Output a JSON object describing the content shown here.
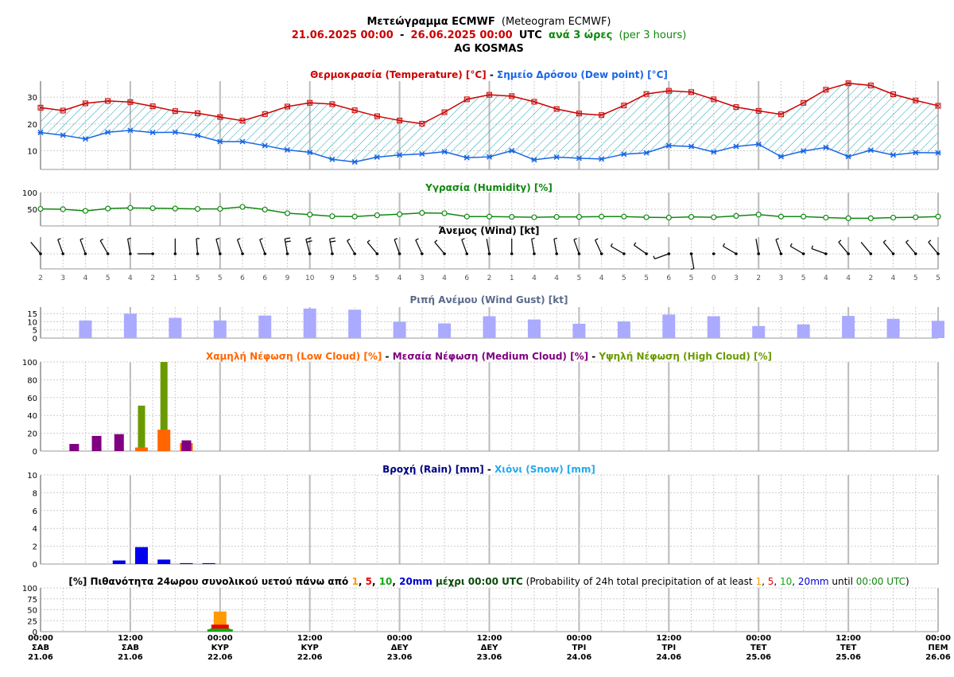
{
  "header": {
    "title_greek": "Μετεώγραμμα ECMWF",
    "title_english": "(Meteogram ECMWF)",
    "range_start": "21.06.2025 00:00",
    "range_sep": "-",
    "range_end": "26.06.2025 00:00",
    "range_utc": "UTC",
    "step_greek": "ανά 3 ώρες",
    "step_english": "(per 3 hours)",
    "location": "AG KOSMAS"
  },
  "colors": {
    "temperature": "#cc0000",
    "dewpoint": "#1a66e6",
    "humidity": "#118811",
    "gust": "#aaaaff",
    "low_cloud": "#ff6600",
    "medium_cloud": "#800080",
    "high_cloud": "#6b9a00",
    "rain": "#0000ee",
    "snow": "#22aaee",
    "prob_1": "#ff9900",
    "prob_5": "#ee0000",
    "prob_10": "#11aa11",
    "prob_20": "#0000cc",
    "hatch": "#1aa3b8"
  },
  "chart_data": [
    {
      "id": "temperature",
      "type": "line",
      "title_parts": [
        {
          "text": "Θερμοκρασία (Temperature) [°C]",
          "color": "#cc0000"
        },
        {
          "text": " - ",
          "color": "#000000"
        },
        {
          "text": "Σημείο Δρόσου (Dew point) [°C]",
          "color": "#1a66e6"
        }
      ],
      "ylim": [
        3,
        36
      ],
      "yticks": [
        10,
        20,
        30
      ],
      "series": [
        {
          "name": "Θερμοκρασία (Temperature) [°C]",
          "values": [
            26.1,
            25.0,
            27.7,
            28.6,
            28.2,
            26.6,
            24.8,
            24.0,
            22.6,
            21.2,
            23.7,
            26.5,
            27.9,
            27.4,
            25.1,
            22.9,
            21.3,
            20.1,
            24.4,
            29.2,
            30.9,
            30.4,
            28.3,
            25.6,
            23.9,
            23.3,
            26.9,
            31.2,
            32.4,
            31.9,
            29.2,
            26.3,
            24.9,
            23.6,
            27.9,
            32.8,
            35.2,
            34.4,
            31.1,
            28.8,
            26.8
          ]
        },
        {
          "name": "Σημείο Δρόσου (Dew point) [°C]",
          "values": [
            16.8,
            15.8,
            14.4,
            16.9,
            17.6,
            16.8,
            16.9,
            15.7,
            13.4,
            13.4,
            11.9,
            10.3,
            9.4,
            6.8,
            5.8,
            7.6,
            8.4,
            8.8,
            9.6,
            7.4,
            7.7,
            10.0,
            6.6,
            7.6,
            7.2,
            6.9,
            8.7,
            9.2,
            11.9,
            11.6,
            9.5,
            11.6,
            12.4,
            7.8,
            9.9,
            11.2,
            7.8,
            10.2,
            8.4,
            9.3,
            9.2
          ]
        }
      ]
    },
    {
      "id": "humidity",
      "type": "line",
      "title_parts": [
        {
          "text": "Υγρασία (Humidity) [%]",
          "color": "#118811"
        }
      ],
      "ylim": [
        0,
        100
      ],
      "yticks": [
        50,
        100
      ],
      "series": [
        {
          "name": "Υγρασία (Humidity) [%]",
          "values": [
            51,
            50,
            45,
            52,
            54,
            53,
            52,
            51,
            51,
            57,
            49,
            38,
            34,
            29,
            28,
            32,
            35,
            39,
            38,
            28,
            28,
            27,
            26,
            27,
            27,
            28,
            28,
            26,
            25,
            27,
            26,
            30,
            34,
            28,
            28,
            25,
            23,
            23,
            25,
            26,
            28
          ]
        }
      ]
    },
    {
      "id": "wind",
      "type": "scatter",
      "title_parts": [
        {
          "text": "Άνεμος (Wind) [kt]",
          "color": "#000000"
        }
      ],
      "speed_labels": [
        "2",
        "3",
        "4",
        "5",
        "4",
        "2",
        "1",
        "5",
        "5",
        "6",
        "6",
        "9",
        "10",
        "9",
        "5",
        "5",
        "4",
        "3",
        "4",
        "6",
        "2",
        "1",
        "4",
        "4",
        "5",
        "4",
        "5",
        "5",
        "6",
        "5",
        "0",
        "3",
        "2",
        "3",
        "5",
        "4",
        "4",
        "2",
        "4",
        "5",
        "5"
      ],
      "series": [
        {
          "name": "speed",
          "values": [
            2,
            3,
            4,
            5,
            4,
            2,
            1,
            5,
            5,
            6,
            6,
            9,
            10,
            9,
            5,
            5,
            4,
            3,
            4,
            6,
            2,
            1,
            4,
            4,
            5,
            4,
            5,
            5,
            6,
            5,
            0,
            3,
            2,
            3,
            5,
            4,
            4,
            2,
            4,
            5,
            5
          ]
        },
        {
          "name": "direction",
          "values": [
            320,
            340,
            340,
            330,
            350,
            270,
            360,
            355,
            345,
            340,
            340,
            350,
            345,
            350,
            330,
            320,
            340,
            335,
            320,
            340,
            350,
            0,
            350,
            350,
            340,
            335,
            300,
            305,
            250,
            170,
            280,
            300,
            350,
            340,
            300,
            290,
            320,
            320,
            320,
            320,
            320
          ]
        }
      ]
    },
    {
      "id": "gust",
      "type": "bar",
      "title_parts": [
        {
          "text": "Ριπή Ανέμου (Wind Gust) [kt]",
          "color": "#5a6a8a"
        }
      ],
      "ylim": [
        0,
        19
      ],
      "yticks": [
        0,
        5,
        10,
        15
      ],
      "series": [
        {
          "name": "Ριπή Ανέμου (Wind Gust) [kt]",
          "values": [
            null,
            10.8,
            15.0,
            12.4,
            10.8,
            13.8,
            18.1,
            17.4,
            10.0,
            9.0,
            13.4,
            11.4,
            8.8,
            10.2,
            14.4,
            13.4,
            7.4,
            8.4,
            13.6,
            11.8,
            10.6
          ]
        }
      ]
    },
    {
      "id": "cloud",
      "type": "bar",
      "title_parts": [
        {
          "text": "Χαμηλή Νέφωση (Low Cloud) [%]",
          "color": "#ff6600"
        },
        {
          "text": " - ",
          "color": "#000000"
        },
        {
          "text": "Μεσαία Νέφωση (Medium Cloud) [%]",
          "color": "#800080"
        },
        {
          "text": " - ",
          "color": "#000000"
        },
        {
          "text": "Υψηλή Νέφωση (High Cloud) [%]",
          "color": "#6b9a00"
        }
      ],
      "ylim": [
        0,
        100
      ],
      "yticks": [
        0,
        20,
        40,
        60,
        80,
        100
      ],
      "series": [
        {
          "name": "Χαμηλή Νέφωση (Low Cloud) [%]",
          "values": [
            0,
            0,
            0,
            0,
            4,
            24,
            9,
            0,
            0,
            0,
            0,
            0,
            0,
            0,
            0,
            0,
            0,
            0,
            0,
            0,
            0,
            0,
            0,
            0,
            0,
            0,
            0,
            0,
            0,
            0,
            0,
            0,
            0,
            0,
            0,
            0,
            0,
            0,
            0,
            0
          ]
        },
        {
          "name": "Μεσαία Νέφωση (Medium Cloud) [%]",
          "values": [
            0,
            8,
            17,
            19,
            2,
            0,
            12,
            0,
            0,
            0,
            0,
            0,
            0,
            0,
            0,
            0,
            0,
            0,
            0,
            0,
            0,
            0,
            0,
            0,
            0,
            0,
            0,
            0,
            0,
            0,
            0,
            0,
            0,
            0,
            0,
            0,
            0,
            0,
            0,
            0
          ]
        },
        {
          "name": "Υψηλή Νέφωση (High Cloud) [%]",
          "values": [
            0,
            0,
            0,
            0,
            51,
            100,
            0,
            0,
            0,
            0,
            0,
            0,
            0,
            0,
            0,
            0,
            0,
            0,
            0,
            0,
            0,
            0,
            0,
            0,
            0,
            0,
            0,
            0,
            0,
            0,
            0,
            0,
            0,
            0,
            0,
            0,
            0,
            0,
            0,
            0
          ]
        }
      ]
    },
    {
      "id": "rain",
      "type": "bar",
      "title_parts": [
        {
          "text": "Βροχή (Rain) [mm]",
          "color": "#000080"
        },
        {
          "text": " - ",
          "color": "#000000"
        },
        {
          "text": "Χιόνι (Snow) [mm]",
          "color": "#22aaee"
        }
      ],
      "ylim": [
        0,
        10
      ],
      "yticks": [
        0,
        2,
        4,
        6,
        8,
        10
      ],
      "series": [
        {
          "name": "Βροχή (Rain) [mm]",
          "values": [
            0,
            0,
            0,
            0.4,
            1.9,
            0.5,
            0.1,
            0.1,
            0,
            0,
            0,
            0,
            0,
            0,
            0,
            0,
            0,
            0,
            0,
            0,
            0,
            0,
            0,
            0,
            0,
            0,
            0,
            0,
            0,
            0,
            0,
            0,
            0,
            0,
            0,
            0,
            0,
            0,
            0,
            0
          ]
        },
        {
          "name": "Χιόνι (Snow) [mm]",
          "values": [
            0,
            0,
            0,
            0,
            0,
            0,
            0,
            0,
            0,
            0,
            0,
            0,
            0,
            0,
            0,
            0,
            0,
            0,
            0,
            0,
            0,
            0,
            0,
            0,
            0,
            0,
            0,
            0,
            0,
            0,
            0,
            0,
            0,
            0,
            0,
            0,
            0,
            0,
            0,
            0
          ]
        }
      ]
    },
    {
      "id": "probability",
      "type": "bar",
      "title_parts": [
        {
          "text": "[%] Πιθανότητα 24ωρου συνολικού υετού πάνω από ",
          "color": "#000000",
          "bold": true
        },
        {
          "text": "1",
          "color": "#ff9900",
          "bold": true
        },
        {
          "text": ", ",
          "color": "#000000",
          "bold": true
        },
        {
          "text": "5",
          "color": "#ee0000",
          "bold": true
        },
        {
          "text": ", ",
          "color": "#000000",
          "bold": true
        },
        {
          "text": "10",
          "color": "#11aa11",
          "bold": true
        },
        {
          "text": ", ",
          "color": "#000000",
          "bold": true
        },
        {
          "text": "20mm",
          "color": "#0000cc",
          "bold": true
        },
        {
          "text": " μέχρι 00:00 UTC",
          "color": "#0a4a0a",
          "bold": true
        },
        {
          "text": " (Probability of 24h total precipitation of at least ",
          "color": "#000000",
          "bold": false
        },
        {
          "text": "1",
          "color": "#ff9900",
          "bold": false
        },
        {
          "text": ", ",
          "color": "#000000",
          "bold": false
        },
        {
          "text": "5",
          "color": "#ee0000",
          "bold": false
        },
        {
          "text": ", ",
          "color": "#000000",
          "bold": false
        },
        {
          "text": "10",
          "color": "#11aa11",
          "bold": false
        },
        {
          "text": ", ",
          "color": "#000000",
          "bold": false
        },
        {
          "text": "20mm",
          "color": "#0000cc",
          "bold": false
        },
        {
          "text": " until ",
          "color": "#000000",
          "bold": false
        },
        {
          "text": "00:00 UTC",
          "color": "#118811",
          "bold": false
        },
        {
          "text": ")",
          "color": "#000000",
          "bold": false
        }
      ],
      "ylim": [
        0,
        100
      ],
      "yticks": [
        0,
        25,
        50,
        75,
        100
      ],
      "days": [
        "22.06",
        "23.06",
        "24.06",
        "25.06",
        "26.06"
      ],
      "series": [
        {
          "name": "1mm",
          "values": [
            46,
            0,
            0,
            0,
            0
          ]
        },
        {
          "name": "5mm",
          "values": [
            16,
            0,
            0,
            0,
            0
          ]
        },
        {
          "name": "10mm",
          "values": [
            7,
            0,
            0,
            0,
            0
          ]
        },
        {
          "name": "20mm",
          "values": [
            0,
            0,
            0,
            0,
            0
          ]
        }
      ]
    }
  ],
  "x_axis": {
    "labels": [
      {
        "time": "00:00",
        "day": "ΣΑΒ",
        "date": "21.06"
      },
      {
        "time": "12:00",
        "day": "ΣΑΒ",
        "date": "21.06"
      },
      {
        "time": "00:00",
        "day": "ΚΥΡ",
        "date": "22.06"
      },
      {
        "time": "12:00",
        "day": "ΚΥΡ",
        "date": "22.06"
      },
      {
        "time": "00:00",
        "day": "ΔΕΥ",
        "date": "23.06"
      },
      {
        "time": "12:00",
        "day": "ΔΕΥ",
        "date": "23.06"
      },
      {
        "time": "00:00",
        "day": "ΤΡΙ",
        "date": "24.06"
      },
      {
        "time": "12:00",
        "day": "ΤΡΙ",
        "date": "24.06"
      },
      {
        "time": "00:00",
        "day": "ΤΕΤ",
        "date": "25.06"
      },
      {
        "time": "12:00",
        "day": "ΤΕΤ",
        "date": "25.06"
      },
      {
        "time": "00:00",
        "day": "ΠΕΜ",
        "date": "26.06"
      }
    ]
  }
}
